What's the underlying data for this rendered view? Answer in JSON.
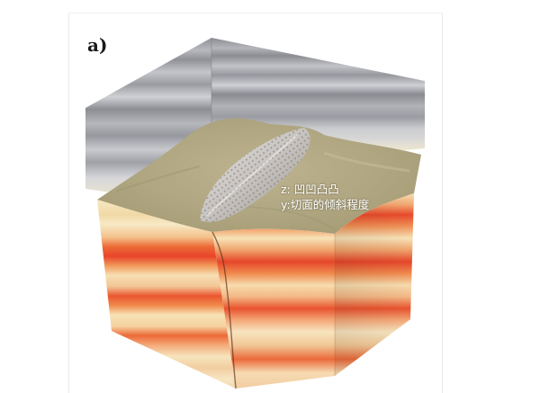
{
  "figure": {
    "panel_label": "a)",
    "annotation": {
      "z_line": "z: 凹凹凸凸",
      "y_line": "y:切面的倾斜程度"
    }
  },
  "colors": {
    "back_wall_gray": "#9a9ca3",
    "top_surface": "#b3aa86",
    "dome": "#cfcfcf",
    "layer_red": "#e8502a",
    "layer_orange": "#f08a4a",
    "layer_cream": "#f7e6bd",
    "layer_pale": "#f3d7a3"
  }
}
